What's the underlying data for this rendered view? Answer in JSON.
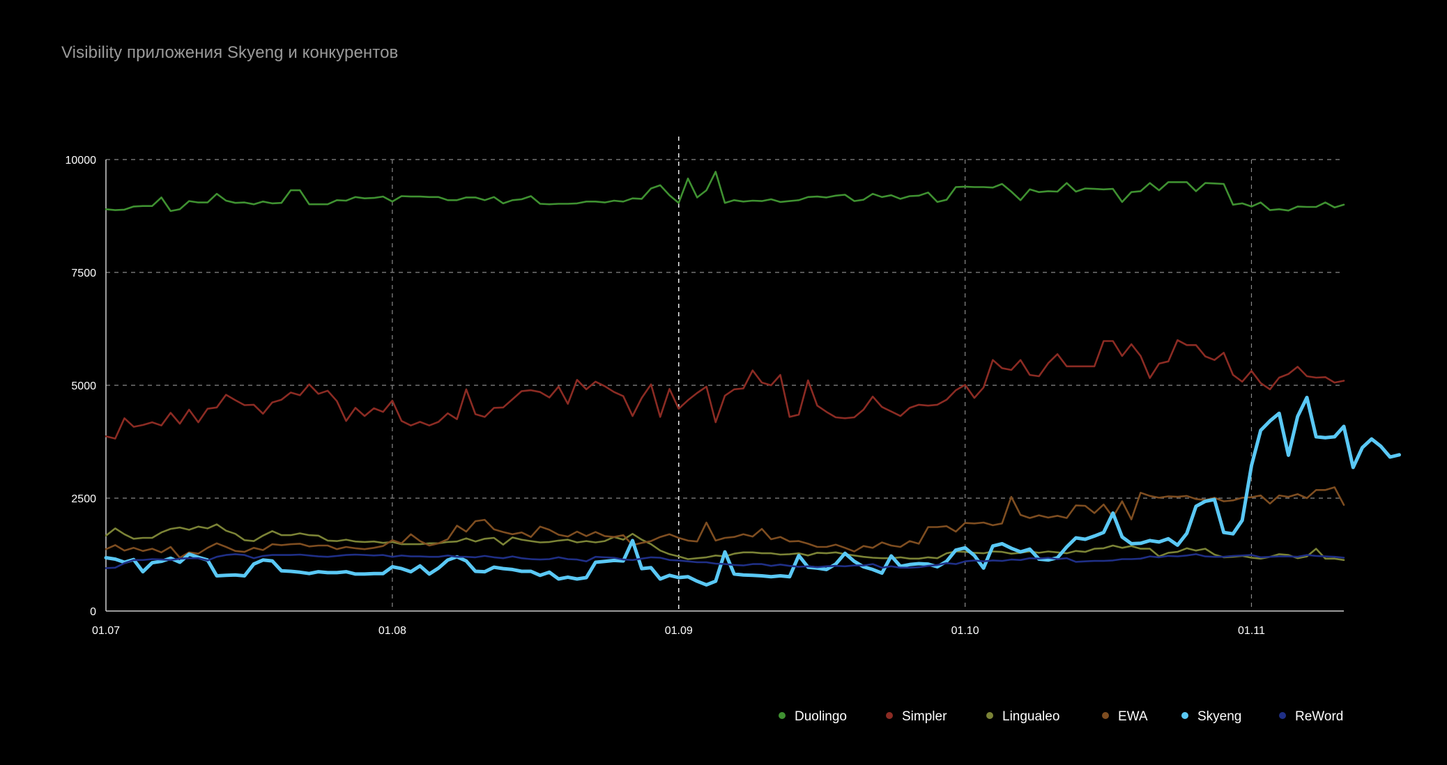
{
  "chart_data": {
    "type": "line",
    "title": "Visibility приложения Skyeng и конкурентов",
    "xlabel": "",
    "ylabel": "",
    "ylim": [
      0,
      10000
    ],
    "yticks": [
      {
        "value": 0,
        "label": "0"
      },
      {
        "value": 2500,
        "label": "2500"
      },
      {
        "value": 5000,
        "label": "5000"
      },
      {
        "value": 7500,
        "label": "7500"
      },
      {
        "value": 10000,
        "label": "10000"
      }
    ],
    "xlim": [
      0,
      134
    ],
    "xticks": [
      {
        "index": 0,
        "label": "01.07",
        "dashed_gridline": false
      },
      {
        "index": 31,
        "label": "01.08",
        "dashed_gridline": true
      },
      {
        "index": 62,
        "label": "01.09",
        "dashed_gridline": true
      },
      {
        "index": 93,
        "label": "01.10",
        "dashed_gridline": true
      },
      {
        "index": 124,
        "label": "01.11",
        "dashed_gridline": true
      }
    ],
    "highlight_x_index": 62,
    "grid": true,
    "legend_position": "bottom-right",
    "series": [
      {
        "name": "Duolingo",
        "color": "#3f9131",
        "line_width": 2.6,
        "label_color": "#ffffff",
        "values": [
          8900,
          8880,
          8890,
          8960,
          8970,
          8970,
          9160,
          8860,
          8900,
          9080,
          9050,
          9050,
          9240,
          9090,
          9040,
          9050,
          9010,
          9070,
          9030,
          9040,
          9320,
          9320,
          9010,
          9010,
          9010,
          9100,
          9090,
          9170,
          9140,
          9150,
          9180,
          9070,
          9190,
          9180,
          9180,
          9170,
          9170,
          9100,
          9100,
          9160,
          9160,
          9100,
          9170,
          9030,
          9100,
          9120,
          9190,
          9020,
          9010,
          9020,
          9020,
          9030,
          9070,
          9070,
          9050,
          9090,
          9070,
          9140,
          9130,
          9360,
          9430,
          9210,
          9040,
          9580,
          9160,
          9320,
          9730,
          9040,
          9100,
          9070,
          9090,
          9080,
          9120,
          9060,
          9080,
          9100,
          9170,
          9180,
          9160,
          9200,
          9220,
          9080,
          9110,
          9240,
          9170,
          9210,
          9130,
          9190,
          9200,
          9270,
          9060,
          9110,
          9390,
          9400,
          9390,
          9390,
          9380,
          9460,
          9290,
          9100,
          9340,
          9280,
          9300,
          9290,
          9480,
          9290,
          9360,
          9350,
          9340,
          9350,
          9060,
          9280,
          9300,
          9480,
          9320,
          9500,
          9500,
          9500,
          9300,
          9480,
          9470,
          9460,
          9000,
          9030,
          8960,
          9050,
          8880,
          8900,
          8870,
          8960,
          8950,
          8950,
          9050,
          8940,
          9000
        ]
      },
      {
        "name": "Simpler",
        "color": "#8b2b23",
        "line_width": 2.6,
        "label_color": "#ffffff",
        "values": [
          3870,
          3820,
          4270,
          4080,
          4120,
          4180,
          4110,
          4390,
          4150,
          4460,
          4180,
          4480,
          4510,
          4790,
          4670,
          4560,
          4570,
          4370,
          4620,
          4680,
          4840,
          4780,
          5020,
          4810,
          4880,
          4650,
          4210,
          4500,
          4320,
          4490,
          4410,
          4660,
          4210,
          4110,
          4190,
          4110,
          4190,
          4380,
          4250,
          4910,
          4360,
          4300,
          4500,
          4510,
          4690,
          4870,
          4890,
          4850,
          4730,
          4970,
          4590,
          5120,
          4910,
          5080,
          4980,
          4850,
          4760,
          4320,
          4720,
          5020,
          4300,
          4920,
          4480,
          4670,
          4830,
          4970,
          4180,
          4770,
          4910,
          4930,
          5330,
          5060,
          5000,
          5230,
          4300,
          4350,
          5110,
          4550,
          4410,
          4290,
          4270,
          4290,
          4460,
          4750,
          4520,
          4420,
          4320,
          4500,
          4570,
          4550,
          4570,
          4680,
          4890,
          5010,
          4720,
          4950,
          5560,
          5380,
          5340,
          5560,
          5230,
          5200,
          5490,
          5690,
          5420,
          5420,
          5420,
          5420,
          5980,
          5980,
          5650,
          5910,
          5650,
          5160,
          5480,
          5530,
          6000,
          5890,
          5890,
          5640,
          5560,
          5720,
          5230,
          5080,
          5320,
          5050,
          4910,
          5170,
          5250,
          5410,
          5200,
          5170,
          5180,
          5060,
          5100
        ]
      },
      {
        "name": "Lingualeo",
        "color": "#7b8336",
        "line_width": 2.6,
        "label_color": "#ffffff",
        "values": [
          1670,
          1830,
          1700,
          1600,
          1620,
          1620,
          1740,
          1820,
          1850,
          1800,
          1870,
          1830,
          1920,
          1780,
          1710,
          1570,
          1550,
          1670,
          1770,
          1680,
          1680,
          1720,
          1680,
          1670,
          1560,
          1550,
          1580,
          1540,
          1530,
          1540,
          1510,
          1530,
          1480,
          1480,
          1480,
          1500,
          1500,
          1530,
          1540,
          1610,
          1540,
          1600,
          1620,
          1470,
          1630,
          1580,
          1550,
          1520,
          1530,
          1560,
          1580,
          1520,
          1550,
          1520,
          1550,
          1640,
          1580,
          1710,
          1580,
          1480,
          1340,
          1260,
          1210,
          1150,
          1170,
          1190,
          1230,
          1210,
          1270,
          1300,
          1300,
          1280,
          1280,
          1250,
          1260,
          1280,
          1230,
          1290,
          1280,
          1300,
          1260,
          1230,
          1200,
          1180,
          1170,
          1170,
          1190,
          1160,
          1160,
          1190,
          1170,
          1280,
          1320,
          1310,
          1290,
          1280,
          1320,
          1310,
          1270,
          1290,
          1320,
          1290,
          1320,
          1300,
          1280,
          1330,
          1310,
          1380,
          1390,
          1450,
          1400,
          1440,
          1380,
          1380,
          1210,
          1290,
          1310,
          1390,
          1340,
          1380,
          1250,
          1190,
          1200,
          1220,
          1180,
          1160,
          1200,
          1260,
          1240,
          1170,
          1210,
          1380,
          1160,
          1160,
          1130
        ]
      },
      {
        "name": "EWA",
        "color": "#7e4d20",
        "line_width": 2.6,
        "label_color": "#ffffff",
        "values": [
          1370,
          1460,
          1340,
          1400,
          1330,
          1380,
          1300,
          1420,
          1180,
          1300,
          1270,
          1400,
          1500,
          1420,
          1330,
          1310,
          1400,
          1350,
          1480,
          1460,
          1480,
          1490,
          1430,
          1450,
          1450,
          1370,
          1420,
          1390,
          1370,
          1400,
          1440,
          1570,
          1500,
          1700,
          1550,
          1450,
          1500,
          1590,
          1890,
          1760,
          1990,
          2020,
          1810,
          1750,
          1700,
          1740,
          1640,
          1870,
          1800,
          1690,
          1650,
          1760,
          1660,
          1750,
          1660,
          1640,
          1680,
          1460,
          1510,
          1550,
          1640,
          1700,
          1620,
          1560,
          1540,
          1960,
          1560,
          1620,
          1640,
          1700,
          1650,
          1820,
          1590,
          1640,
          1540,
          1550,
          1490,
          1420,
          1420,
          1470,
          1400,
          1320,
          1440,
          1400,
          1520,
          1450,
          1420,
          1550,
          1490,
          1860,
          1860,
          1880,
          1760,
          1950,
          1940,
          1960,
          1900,
          1940,
          2530,
          2130,
          2060,
          2120,
          2070,
          2110,
          2060,
          2340,
          2330,
          2170,
          2360,
          2080,
          2430,
          2030,
          2620,
          2550,
          2510,
          2540,
          2530,
          2550,
          2480,
          2460,
          2510,
          2430,
          2450,
          2510,
          2520,
          2560,
          2380,
          2560,
          2530,
          2590,
          2500,
          2680,
          2680,
          2740,
          2350
        ]
      },
      {
        "name": "Skyeng",
        "color": "#5ac8f5",
        "line_width": 5,
        "label_color": "#d9453d",
        "values": [
          1180,
          1150,
          1080,
          1140,
          870,
          1070,
          1100,
          1170,
          1080,
          1260,
          1190,
          1130,
          780,
          790,
          800,
          780,
          1040,
          1130,
          1110,
          890,
          880,
          860,
          830,
          870,
          850,
          850,
          870,
          820,
          820,
          830,
          830,
          980,
          940,
          870,
          1000,
          820,
          950,
          1130,
          1200,
          1110,
          880,
          870,
          970,
          940,
          920,
          880,
          880,
          790,
          860,
          710,
          750,
          710,
          740,
          1080,
          1100,
          1120,
          1110,
          1560,
          940,
          960,
          710,
          790,
          740,
          760,
          660,
          580,
          660,
          1310,
          820,
          800,
          790,
          780,
          760,
          780,
          760,
          1230,
          970,
          950,
          920,
          1040,
          1280,
          1100,
          980,
          920,
          840,
          1220,
          990,
          1030,
          1050,
          1040,
          980,
          1100,
          1350,
          1400,
          1230,
          950,
          1440,
          1490,
          1390,
          1310,
          1370,
          1150,
          1130,
          1180,
          1420,
          1620,
          1590,
          1660,
          1740,
          2170,
          1640,
          1490,
          1500,
          1560,
          1530,
          1600,
          1460,
          1720,
          2320,
          2430,
          2470,
          1740,
          1710,
          2010,
          3220,
          4000,
          4210,
          4380,
          3450,
          4310,
          4730,
          3860,
          3840,
          3860,
          4090,
          3180,
          3620,
          3810,
          3650,
          3410,
          3460
        ]
      },
      {
        "name": "ReWord",
        "color": "#1f2f86",
        "line_width": 2.6,
        "label_color": "#ffffff",
        "values": [
          950,
          960,
          1060,
          1130,
          1130,
          1150,
          1140,
          1130,
          1160,
          1170,
          1170,
          1120,
          1200,
          1240,
          1260,
          1240,
          1170,
          1220,
          1240,
          1240,
          1240,
          1250,
          1230,
          1210,
          1200,
          1220,
          1240,
          1250,
          1240,
          1230,
          1240,
          1200,
          1230,
          1210,
          1210,
          1200,
          1200,
          1230,
          1200,
          1200,
          1190,
          1220,
          1190,
          1170,
          1210,
          1170,
          1150,
          1140,
          1150,
          1190,
          1150,
          1140,
          1100,
          1200,
          1190,
          1180,
          1140,
          1130,
          1160,
          1190,
          1180,
          1130,
          1120,
          1100,
          1080,
          1080,
          1050,
          1040,
          1020,
          1010,
          1040,
          1040,
          1000,
          1030,
          1000,
          980,
          990,
          970,
          990,
          1000,
          990,
          1010,
          1010,
          1040,
          960,
          990,
          960,
          960,
          970,
          1000,
          1020,
          1060,
          1040,
          1100,
          1120,
          1100,
          1120,
          1110,
          1140,
          1130,
          1170,
          1160,
          1180,
          1150,
          1170,
          1090,
          1100,
          1110,
          1110,
          1120,
          1150,
          1150,
          1160,
          1210,
          1190,
          1220,
          1210,
          1230,
          1260,
          1210,
          1200,
          1200,
          1220,
          1230,
          1240,
          1190,
          1200,
          1210,
          1210,
          1200,
          1240,
          1220,
          1210,
          1200,
          1180
        ]
      }
    ]
  }
}
